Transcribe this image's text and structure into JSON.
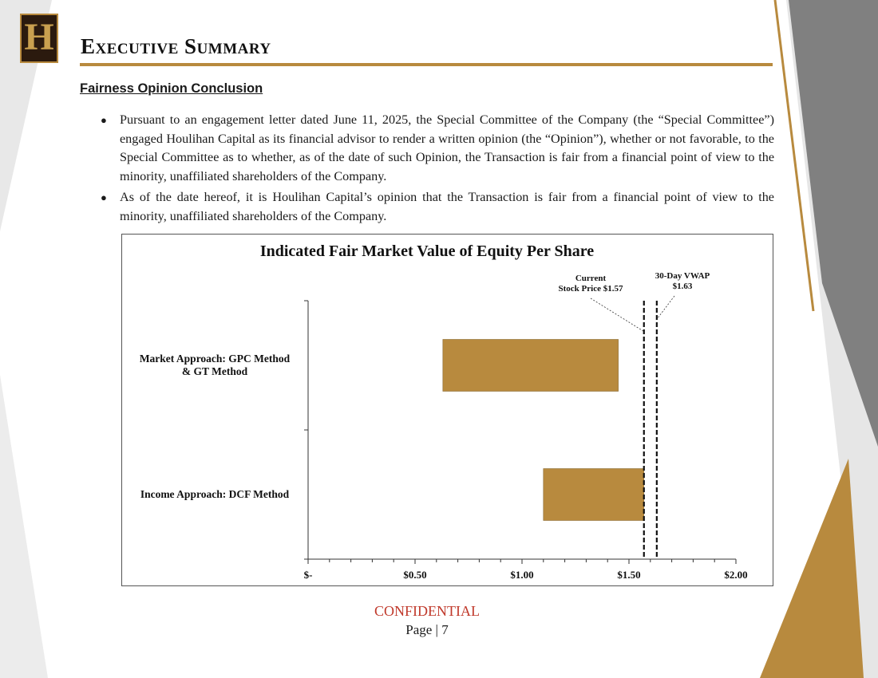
{
  "header": {
    "logo_letter": "H",
    "title": "Executive Summary"
  },
  "section": {
    "heading": "Fairness Opinion Conclusion",
    "bullets": [
      "Pursuant to an engagement letter dated June 11, 2025, the Special Committee of the Company (the “Special Committee”) engaged Houlihan Capital as its financial advisor to render a written opinion (the “Opinion”), whether or not favorable, to the Special Committee as to whether, as of the date of such Opinion, the Transaction is fair from a financial point of view to the minority, unaffiliated shareholders of the Company.",
      "As of the date hereof, it is Houlihan Capital’s opinion that the Transaction is fair from a financial point of view to the minority, unaffiliated shareholders of the Company."
    ]
  },
  "chart_data": {
    "type": "bar",
    "orientation": "horizontal",
    "title": "Indicated Fair Market Value of  Equity Per Share",
    "categories": [
      "Market Approach: GPC Method & GT Method",
      "Income Approach: DCF Method"
    ],
    "ranges": [
      {
        "name": "Market Approach: GPC Method & GT Method",
        "low": 0.63,
        "high": 1.45
      },
      {
        "name": "Income Approach: DCF Method",
        "low": 1.1,
        "high": 1.57
      }
    ],
    "reference_lines": [
      {
        "label": "Current Stock Price $1.57",
        "label_lines": [
          "Current",
          "Stock Price $1.57"
        ],
        "value": 1.57
      },
      {
        "label": "30-Day VWAP $1.63",
        "label_lines": [
          "30-Day VWAP",
          "$1.63"
        ],
        "value": 1.63
      }
    ],
    "xlim": [
      0,
      2.0
    ],
    "xticks": [
      0,
      0.5,
      1.0,
      1.5,
      2.0
    ],
    "xtick_labels": [
      "$-",
      "$0.50",
      "$1.00",
      "$1.50",
      "$2.00"
    ],
    "bar_color": "#b88a3e",
    "grid": false
  },
  "footer": {
    "confidential": "CONFIDENTIAL",
    "page": "Page  |  7"
  },
  "colors": {
    "gold": "#b88a3e",
    "gray": "#808080",
    "light_gray": "#e6e6e6",
    "confidential": "#c0392b"
  }
}
